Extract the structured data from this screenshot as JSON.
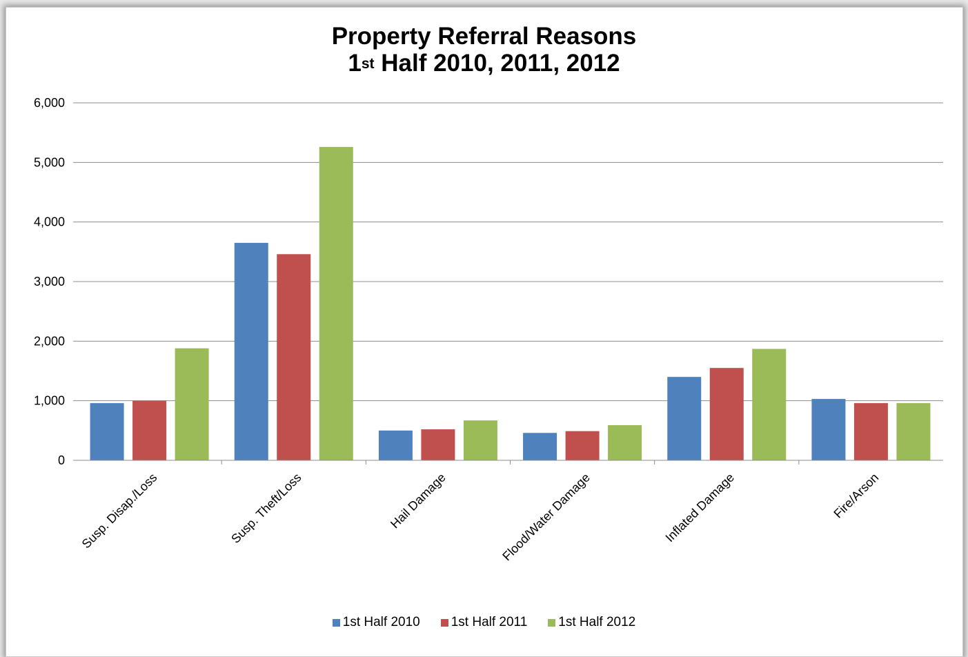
{
  "chart_data": {
    "type": "bar",
    "title": "Property Referral Reasons",
    "subtitle": {
      "prefix": "1",
      "sup": "st",
      "rest": " Half 2010, 2011, 2012"
    },
    "categories": [
      "Susp. Disap./Loss",
      "Susp. Theft/Loss",
      "Hail Damage",
      "Flood/Water Damage",
      "Inflated Damage",
      "Fire/Arson"
    ],
    "series": [
      {
        "name": "1st Half 2010",
        "color": "#4f81bd",
        "values": [
          960,
          3650,
          500,
          460,
          1400,
          1030
        ]
      },
      {
        "name": "1st Half 2011",
        "color": "#c0504d",
        "values": [
          1000,
          3460,
          520,
          490,
          1550,
          960
        ]
      },
      {
        "name": "1st Half 2012",
        "color": "#9bbb59",
        "values": [
          1880,
          5260,
          670,
          590,
          1870,
          960
        ]
      }
    ],
    "ylim": [
      0,
      6000
    ],
    "yticks": [
      0,
      1000,
      2000,
      3000,
      4000,
      5000,
      6000
    ],
    "ytick_labels": [
      "0",
      "1,000",
      "2,000",
      "3,000",
      "4,000",
      "5,000",
      "6,000"
    ],
    "xlabel": "",
    "ylabel": "",
    "grid": true,
    "legend_position": "bottom"
  }
}
